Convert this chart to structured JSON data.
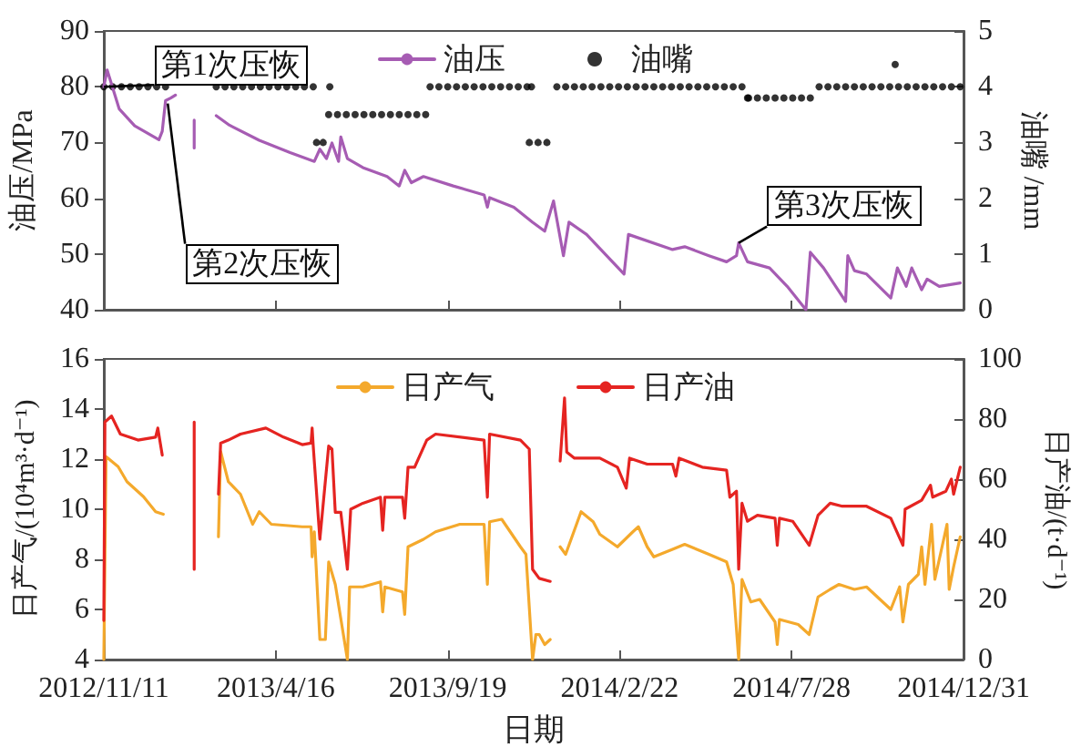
{
  "chart_data": [
    {
      "type": "line",
      "ylabel": "油压/MPa",
      "y2label": "油嘴 /mm",
      "ylim": [
        40,
        90
      ],
      "yticks": [
        40,
        50,
        60,
        70,
        80,
        90
      ],
      "y2lim": [
        0,
        5
      ],
      "y2ticks": [
        0,
        1,
        2,
        3,
        4,
        5
      ],
      "xlim": [
        "2012-11-11",
        "2014-12-31"
      ],
      "xticks": [
        {
          "value": "2012-11-11",
          "label": null
        },
        {
          "value": "2013-04-16",
          "label": null
        },
        {
          "value": "2013-09-19",
          "label": null
        },
        {
          "value": "2014-02-22",
          "label": null
        },
        {
          "value": "2014-07-28",
          "label": null
        },
        {
          "value": "2014-12-31",
          "label": null
        }
      ],
      "tick_labels": "y",
      "grid": false,
      "legend": "top",
      "marker": "none",
      "annotations": [
        {
          "text": "第1次压恢",
          "x": "2012-11-11",
          "y": 80
        },
        {
          "text": "第2次压恢",
          "x": "2013-01-08",
          "y": 77
        },
        {
          "text": "第3次压恢",
          "x": "2014-06-10",
          "y": 52
        }
      ],
      "series": [
        {
          "name": "油压",
          "color": "#a65cb3",
          "x": [
            "2012-11-11",
            "2012-11-14",
            "2012-11-25",
            "2012-12-09",
            "2012-12-31",
            "2013-01-03",
            "2013-01-06",
            "2013-01-11",
            "2013-01-15",
            "2013-01-25",
            "2013-02-01",
            "2013-02-01",
            "2013-02-10",
            "2013-02-21",
            "2013-03-05",
            "2013-04-01",
            "2013-04-29",
            "2013-05-21",
            "2013-05-26",
            "2013-06-01",
            "2013-06-06",
            "2013-06-12",
            "2013-06-14",
            "2013-06-20",
            "2013-07-04",
            "2013-07-26",
            "2013-08-06",
            "2013-08-11",
            "2013-08-17",
            "2013-08-28",
            "2013-09-24",
            "2013-10-22",
            "2013-10-25",
            "2013-10-27",
            "2013-11-18",
            "2013-12-05",
            "2013-12-16",
            "2013-12-24",
            "2014-01-02",
            "2014-01-07",
            "2014-01-23",
            "2014-02-26",
            "2014-03-02",
            "2014-04-11",
            "2014-04-22",
            "2014-05-14",
            "2014-05-30",
            "2014-06-08",
            "2014-06-10",
            "2014-06-18",
            "2014-07-08",
            "2014-07-24",
            "2014-08-10",
            "2014-08-14",
            "2014-08-26",
            "2014-09-15",
            "2014-09-17",
            "2014-09-23",
            "2014-10-04",
            "2014-10-26",
            "2014-11-01",
            "2014-11-09",
            "2014-11-14",
            "2014-11-23",
            "2014-11-28",
            "2014-12-09",
            "2014-12-28"
          ],
          "values": [
            80,
            83,
            76,
            73,
            70.5,
            72,
            77.5,
            78,
            78.5,
            null,
            74,
            69,
            null,
            74.8,
            73.1,
            70.4,
            68.2,
            66.6,
            68.8,
            67.1,
            69.9,
            66.6,
            71,
            67.1,
            65.5,
            63.9,
            62.2,
            65,
            62.8,
            63.9,
            62.2,
            60.6,
            58.4,
            60.1,
            58.4,
            55.7,
            54.1,
            59.5,
            49.7,
            55.7,
            53.5,
            46.4,
            53.5,
            50.8,
            51.3,
            49.7,
            48.6,
            49.7,
            52,
            48.6,
            47.5,
            44.2,
            40,
            50.3,
            47.5,
            41.5,
            49.7,
            47,
            46.4,
            42.1,
            47.5,
            44.2,
            47.5,
            43.6,
            45.5,
            44.2,
            44.8
          ]
        },
        {
          "name": "油嘴",
          "type": "scatter",
          "axis": "y2",
          "marker": "circle",
          "color": "#000000",
          "x": [
            "2012-11-11",
            "2012-11-19",
            "2012-11-27",
            "2012-12-05",
            "2012-12-13",
            "2012-12-21",
            "2012-12-29",
            "2013-01-06",
            "2013-02-21",
            "2013-03-01",
            "2013-03-09",
            "2013-03-17",
            "2013-03-25",
            "2013-04-02",
            "2013-04-10",
            "2013-04-18",
            "2013-04-26",
            "2013-05-04",
            "2013-05-12",
            "2013-05-20",
            "2013-06-04",
            "2013-05-23",
            "2013-05-29",
            "2013-06-03",
            "2013-06-11",
            "2013-06-19",
            "2013-06-27",
            "2013-07-05",
            "2013-07-13",
            "2013-07-21",
            "2013-07-29",
            "2013-08-06",
            "2013-08-14",
            "2013-08-22",
            "2013-08-30",
            "2013-09-03",
            "2013-09-11",
            "2013-09-19",
            "2013-09-27",
            "2013-10-05",
            "2013-10-13",
            "2013-10-21",
            "2013-10-29",
            "2013-11-06",
            "2013-11-14",
            "2013-11-22",
            "2013-11-30",
            "2013-12-04",
            "2013-12-02",
            "2013-12-10",
            "2013-12-18",
            "2013-12-27",
            "2014-01-04",
            "2014-01-12",
            "2014-01-20",
            "2014-01-28",
            "2014-02-05",
            "2014-02-13",
            "2014-02-21",
            "2014-03-01",
            "2014-03-09",
            "2014-03-17",
            "2014-03-25",
            "2014-04-02",
            "2014-04-10",
            "2014-04-18",
            "2014-04-26",
            "2014-05-04",
            "2014-05-12",
            "2014-05-20",
            "2014-05-28",
            "2014-06-05",
            "2014-06-13",
            "2014-06-18",
            "2014-06-19",
            "2014-06-27",
            "2014-07-05",
            "2014-07-13",
            "2014-07-21",
            "2014-07-29",
            "2014-08-06",
            "2014-08-14",
            "2014-08-22",
            "2014-08-30",
            "2014-09-07",
            "2014-09-15",
            "2014-09-23",
            "2014-10-01",
            "2014-10-09",
            "2014-10-17",
            "2014-10-25",
            "2014-11-02",
            "2014-11-10",
            "2014-11-18",
            "2014-11-26",
            "2014-12-04",
            "2014-12-12",
            "2014-12-20",
            "2014-12-28",
            "2014-10-30"
          ],
          "values": [
            4,
            4,
            4,
            4,
            4,
            4,
            4,
            4,
            4,
            4,
            4,
            4,
            4,
            4,
            4,
            4,
            4,
            4,
            4,
            4,
            4,
            3,
            3,
            3.5,
            3.5,
            3.5,
            3.5,
            3.5,
            3.5,
            3.5,
            3.5,
            3.5,
            3.5,
            3.5,
            3.5,
            4,
            4,
            4,
            4,
            4,
            4,
            4,
            4,
            4,
            4,
            4,
            4,
            4,
            3,
            3,
            3,
            4,
            4,
            4,
            4,
            4,
            4,
            4,
            4,
            4,
            4,
            4,
            4,
            4,
            4,
            4,
            4,
            4,
            4,
            4,
            4,
            4,
            4,
            3.8,
            3.8,
            3.8,
            3.8,
            3.8,
            3.8,
            3.8,
            3.8,
            3.8,
            4,
            4,
            4,
            4,
            4,
            4,
            4,
            4,
            4,
            4,
            4,
            4,
            4,
            4,
            4,
            4,
            4,
            4.4
          ]
        }
      ]
    },
    {
      "type": "line",
      "xlabel": "日期",
      "ylabel": "日产气/(10⁴m³·d⁻¹)",
      "y2label": "日产油/(t·d⁻¹)",
      "ylim": [
        4,
        16
      ],
      "yticks": [
        4,
        6,
        8,
        10,
        12,
        14,
        16
      ],
      "y2lim": [
        0,
        100
      ],
      "y2ticks": [
        0,
        20,
        40,
        60,
        80,
        100
      ],
      "xlim": [
        "2012-11-11",
        "2014-12-31"
      ],
      "xticks": [
        {
          "value": "2012-11-11",
          "label": "2012/11/11"
        },
        {
          "value": "2013-04-16",
          "label": "2013/4/16"
        },
        {
          "value": "2013-09-19",
          "label": "2013/9/19"
        },
        {
          "value": "2014-02-22",
          "label": "2014/2/22"
        },
        {
          "value": "2014-07-28",
          "label": "2014/7/28"
        },
        {
          "value": "2014-12-31",
          "label": "2014/12/31"
        }
      ],
      "grid": false,
      "legend": "top",
      "marker": "none",
      "series": [
        {
          "name": "日产气",
          "color": "#f4a92c",
          "x": [
            "2012-11-11",
            "2012-11-13",
            "2012-11-24",
            "2012-12-02",
            "2012-12-17",
            "2012-12-28",
            "2013-01-04",
            "2013-01-20",
            "2013-02-23",
            "2013-02-25",
            "2013-03-04",
            "2013-03-15",
            "2013-03-26",
            "2013-04-01",
            "2013-04-12",
            "2013-05-10",
            "2013-05-18",
            "2013-05-19",
            "2013-05-21",
            "2013-05-26",
            "2013-05-31",
            "2013-06-03",
            "2013-06-09",
            "2013-06-20",
            "2013-06-22",
            "2013-07-04",
            "2013-07-20",
            "2013-07-22",
            "2013-07-24",
            "2013-08-09",
            "2013-08-11",
            "2013-08-14",
            "2013-08-28",
            "2013-09-08",
            "2013-09-30",
            "2013-10-22",
            "2013-10-25",
            "2013-10-27",
            "2013-11-07",
            "2013-11-24",
            "2013-11-29",
            "2013-12-05",
            "2013-12-08",
            "2013-12-11",
            "2013-12-16",
            "2013-12-21",
            "2013-12-25",
            "2013-12-30",
            "2014-01-04",
            "2014-01-18",
            "2014-01-29",
            "2014-02-04",
            "2014-02-20",
            "2014-03-06",
            "2014-03-11",
            "2014-03-19",
            "2014-03-25",
            "2014-04-11",
            "2014-04-22",
            "2014-05-14",
            "2014-05-30",
            "2014-06-05",
            "2014-06-10",
            "2014-06-13",
            "2014-06-21",
            "2014-06-29",
            "2014-07-13",
            "2014-07-15",
            "2014-07-17",
            "2014-08-03",
            "2014-08-13",
            "2014-08-21",
            "2014-09-01",
            "2014-09-09",
            "2014-09-23",
            "2014-10-04",
            "2014-10-26",
            "2014-11-03",
            "2014-11-06",
            "2014-11-11",
            "2014-11-20",
            "2014-11-23",
            "2014-11-26",
            "2014-12-02",
            "2014-12-05",
            "2014-12-16",
            "2014-12-18",
            "2014-12-22",
            "2014-12-28"
          ],
          "values": [
            4,
            12.1,
            11.7,
            11.1,
            10.5,
            9.9,
            9.8,
            null,
            8.9,
            12.3,
            11.1,
            10.6,
            9.4,
            9.9,
            9.4,
            9.3,
            9.3,
            8.1,
            9.1,
            4.8,
            4.8,
            7.9,
            7,
            4,
            6.9,
            6.9,
            7.1,
            5.9,
            6.9,
            6.7,
            5.8,
            8.5,
            8.8,
            9.1,
            9.4,
            9.4,
            7,
            9.5,
            9.6,
            8.5,
            8.2,
            4,
            5,
            5,
            4.6,
            4.8,
            null,
            8.5,
            8.2,
            9.9,
            9.5,
            9,
            8.5,
            9.1,
            9.3,
            8.5,
            8.1,
            8.4,
            8.6,
            8.2,
            7.9,
            7,
            4,
            7.2,
            6.3,
            6.4,
            5.5,
            4.6,
            5.6,
            5.4,
            5,
            6.5,
            6.8,
            7,
            6.8,
            6.9,
            6,
            6.9,
            5.5,
            7,
            7.4,
            8.5,
            7,
            9.4,
            7.2,
            9.4,
            6.8,
            7.7,
            8.9
          ]
        },
        {
          "name": "日产油",
          "axis": "y2",
          "color": "#e52421",
          "x": [
            "2012-11-11",
            "2012-11-12",
            "2012-11-18",
            "2012-11-26",
            "2012-12-12",
            "2012-12-28",
            "2012-12-30",
            "2013-01-03",
            "2013-01-20",
            "2013-02-01",
            "2013-02-01",
            "2013-02-10",
            "2013-02-23",
            "2013-02-25",
            "2013-03-04",
            "2013-03-15",
            "2013-04-07",
            "2013-04-23",
            "2013-05-10",
            "2013-05-18",
            "2013-05-19",
            "2013-05-20",
            "2013-05-26",
            "2013-06-03",
            "2013-06-06",
            "2013-06-09",
            "2013-06-14",
            "2013-06-20",
            "2013-06-23",
            "2013-07-04",
            "2013-07-20",
            "2013-07-22",
            "2013-07-24",
            "2013-08-09",
            "2013-08-11",
            "2013-08-14",
            "2013-08-20",
            "2013-08-31",
            "2013-09-08",
            "2013-10-22",
            "2013-10-25",
            "2013-10-27",
            "2013-11-24",
            "2013-12-02",
            "2013-12-05",
            "2013-12-11",
            "2013-12-21",
            "2013-12-25",
            "2013-12-30",
            "2014-01-03",
            "2014-01-05",
            "2014-01-12",
            "2014-02-04",
            "2014-02-20",
            "2014-02-28",
            "2014-03-03",
            "2014-03-19",
            "2014-04-11",
            "2014-04-14",
            "2014-04-17",
            "2014-05-08",
            "2014-05-30",
            "2014-06-02",
            "2014-06-08",
            "2014-06-10",
            "2014-06-13",
            "2014-06-18",
            "2014-06-27",
            "2014-07-13",
            "2014-07-15",
            "2014-07-17",
            "2014-07-29",
            "2014-08-13",
            "2014-08-21",
            "2014-09-01",
            "2014-09-12",
            "2014-10-04",
            "2014-10-26",
            "2014-11-06",
            "2014-11-08",
            "2014-11-23",
            "2014-12-01",
            "2014-12-03",
            "2014-12-15",
            "2014-12-20",
            "2014-12-22",
            "2014-12-28"
          ],
          "values": [
            13,
            79,
            81,
            75,
            73,
            74,
            77,
            68,
            null,
            30,
            79,
            null,
            55,
            72,
            73,
            75,
            77,
            74,
            71.5,
            72,
            77,
            71,
            40,
            71,
            70,
            49,
            49,
            30,
            50,
            52,
            54,
            43,
            54,
            54,
            47,
            64,
            64,
            73,
            75,
            73,
            54,
            75,
            73,
            70,
            30,
            27,
            26,
            null,
            66,
            87,
            69,
            67,
            67,
            64,
            57,
            67,
            65,
            65,
            61,
            67,
            64,
            63,
            54,
            56,
            30,
            52,
            46,
            48,
            47,
            38,
            47,
            46,
            38,
            48,
            52,
            51,
            51,
            47,
            38,
            50,
            53,
            58,
            54,
            56,
            60,
            55,
            64
          ]
        }
      ]
    }
  ]
}
